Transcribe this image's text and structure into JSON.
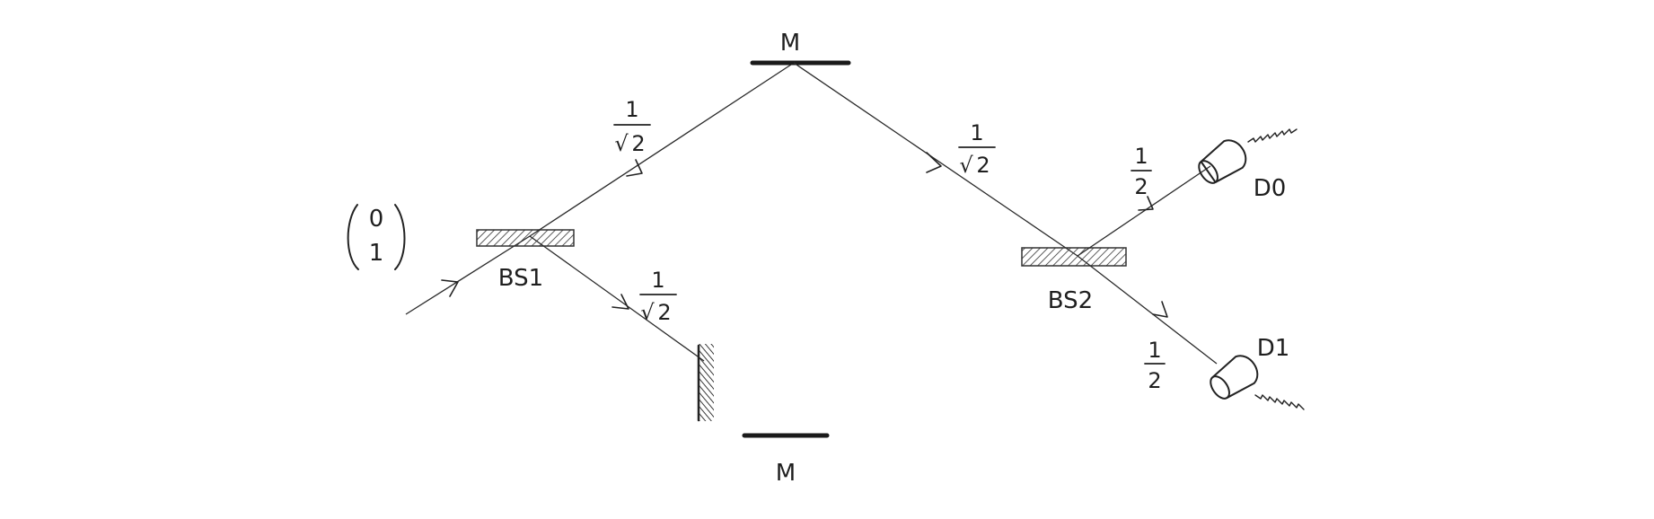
{
  "diagram": {
    "input_state": {
      "top": "0",
      "bottom": "1"
    },
    "mirror_top_label": "M",
    "mirror_bottom_label": "M",
    "bs1_label": "BS1",
    "bs2_label": "BS2",
    "d0_label": "D0",
    "d1_label": "D1",
    "amp_bs1_up": {
      "num": "1",
      "den": "2",
      "radical": "√"
    },
    "amp_bs1_down": {
      "num": "1",
      "den": "2",
      "radical": "√"
    },
    "amp_m_to_bs2": {
      "num": "1",
      "den": "2",
      "radical": "√"
    },
    "prob_d0": {
      "num": "1",
      "den": "2"
    },
    "prob_d1": {
      "num": "1",
      "den": "2"
    }
  }
}
